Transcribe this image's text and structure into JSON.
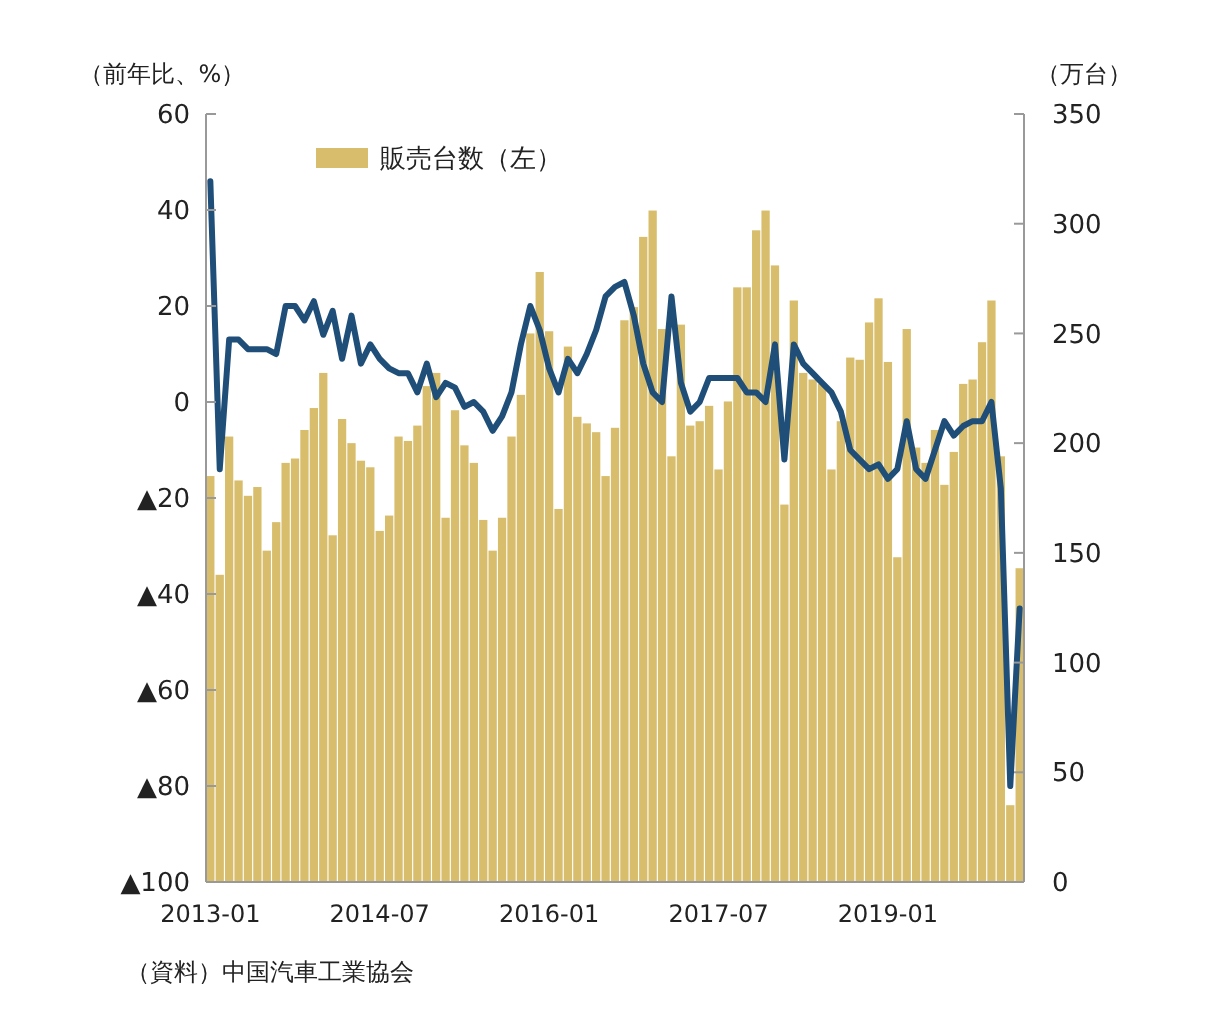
{
  "chart_data": {
    "type": "bar",
    "ylabel": "（前年比、%）",
    "y2label": "（万台）",
    "categories": [
      "2013-01",
      null,
      null,
      null,
      null,
      null,
      null,
      null,
      null,
      null,
      null,
      null,
      null,
      null,
      null,
      null,
      null,
      null,
      "2014-07",
      null,
      null,
      null,
      null,
      null,
      null,
      null,
      null,
      null,
      null,
      null,
      null,
      null,
      null,
      null,
      null,
      null,
      "2016-01",
      null,
      null,
      null,
      null,
      null,
      null,
      null,
      null,
      null,
      null,
      null,
      null,
      null,
      null,
      null,
      null,
      null,
      "2017-07",
      null,
      null,
      null,
      null,
      null,
      null,
      null,
      null,
      null,
      null,
      null,
      null,
      null,
      null,
      null,
      null,
      null,
      "2019-01",
      null,
      null,
      null,
      null,
      null,
      null,
      null,
      null,
      null,
      null,
      null,
      null,
      null,
      null
    ],
    "series": [
      {
        "name": "販売台数（左）",
        "axis": "y2",
        "color": "#d8be6c",
        "values": [
          185,
          140,
          203,
          183,
          176,
          180,
          151,
          164,
          191,
          193,
          206,
          216,
          232,
          158,
          211,
          200,
          192,
          189,
          160,
          167,
          203,
          201,
          208,
          226,
          232,
          166,
          215,
          199,
          191,
          165,
          151,
          166,
          203,
          222,
          250,
          278,
          251,
          170,
          244,
          212,
          209,
          205,
          185,
          207,
          256,
          262,
          294,
          306,
          252,
          194,
          254,
          208,
          210,
          217,
          188,
          219,
          271,
          271,
          297,
          306,
          281,
          172,
          265,
          232,
          229,
          227,
          188,
          210,
          239,
          238,
          255,
          266,
          237,
          148,
          252,
          198,
          191,
          206,
          181,
          196,
          227,
          229,
          246,
          265,
          194,
          35,
          143
        ]
      },
      {
        "type": "line",
        "axis": "y",
        "color": "#1f4e79",
        "values": [
          46,
          -14,
          13,
          13,
          11,
          11,
          11,
          10,
          20,
          20,
          17,
          21,
          14,
          19,
          9,
          18,
          8,
          12,
          9,
          7,
          6,
          6,
          2,
          8,
          1,
          4,
          3,
          -1,
          0,
          -2,
          -6,
          -3,
          2,
          12,
          20,
          15,
          7,
          2,
          9,
          6,
          10,
          15,
          22,
          24,
          25,
          18,
          8,
          2,
          0,
          22,
          4,
          -2,
          0,
          5,
          5,
          5,
          5,
          2,
          2,
          0,
          12,
          -12,
          12,
          8,
          6,
          4,
          2,
          -2,
          -10,
          -12,
          -14,
          -13,
          -16,
          -14,
          -4,
          -14,
          -16,
          -10,
          -4,
          -7,
          -5,
          -4,
          -4,
          0,
          -18,
          -80,
          -43
        ]
      }
    ],
    "ylim": [
      -100,
      60
    ],
    "yticks": [
      {
        "value": -100,
        "label": "▲100"
      },
      {
        "value": -80,
        "label": "▲80"
      },
      {
        "value": -60,
        "label": "▲60"
      },
      {
        "value": -40,
        "label": "▲40"
      },
      {
        "value": -20,
        "label": "▲20"
      },
      0,
      20,
      40,
      60
    ],
    "y2lim": [
      0,
      350
    ],
    "y2ticks": [
      0,
      50,
      100,
      150,
      200,
      250,
      300,
      350
    ],
    "legend": "top left",
    "grid": false,
    "annotations": [
      "（資料）中国汽車工業協会"
    ]
  }
}
